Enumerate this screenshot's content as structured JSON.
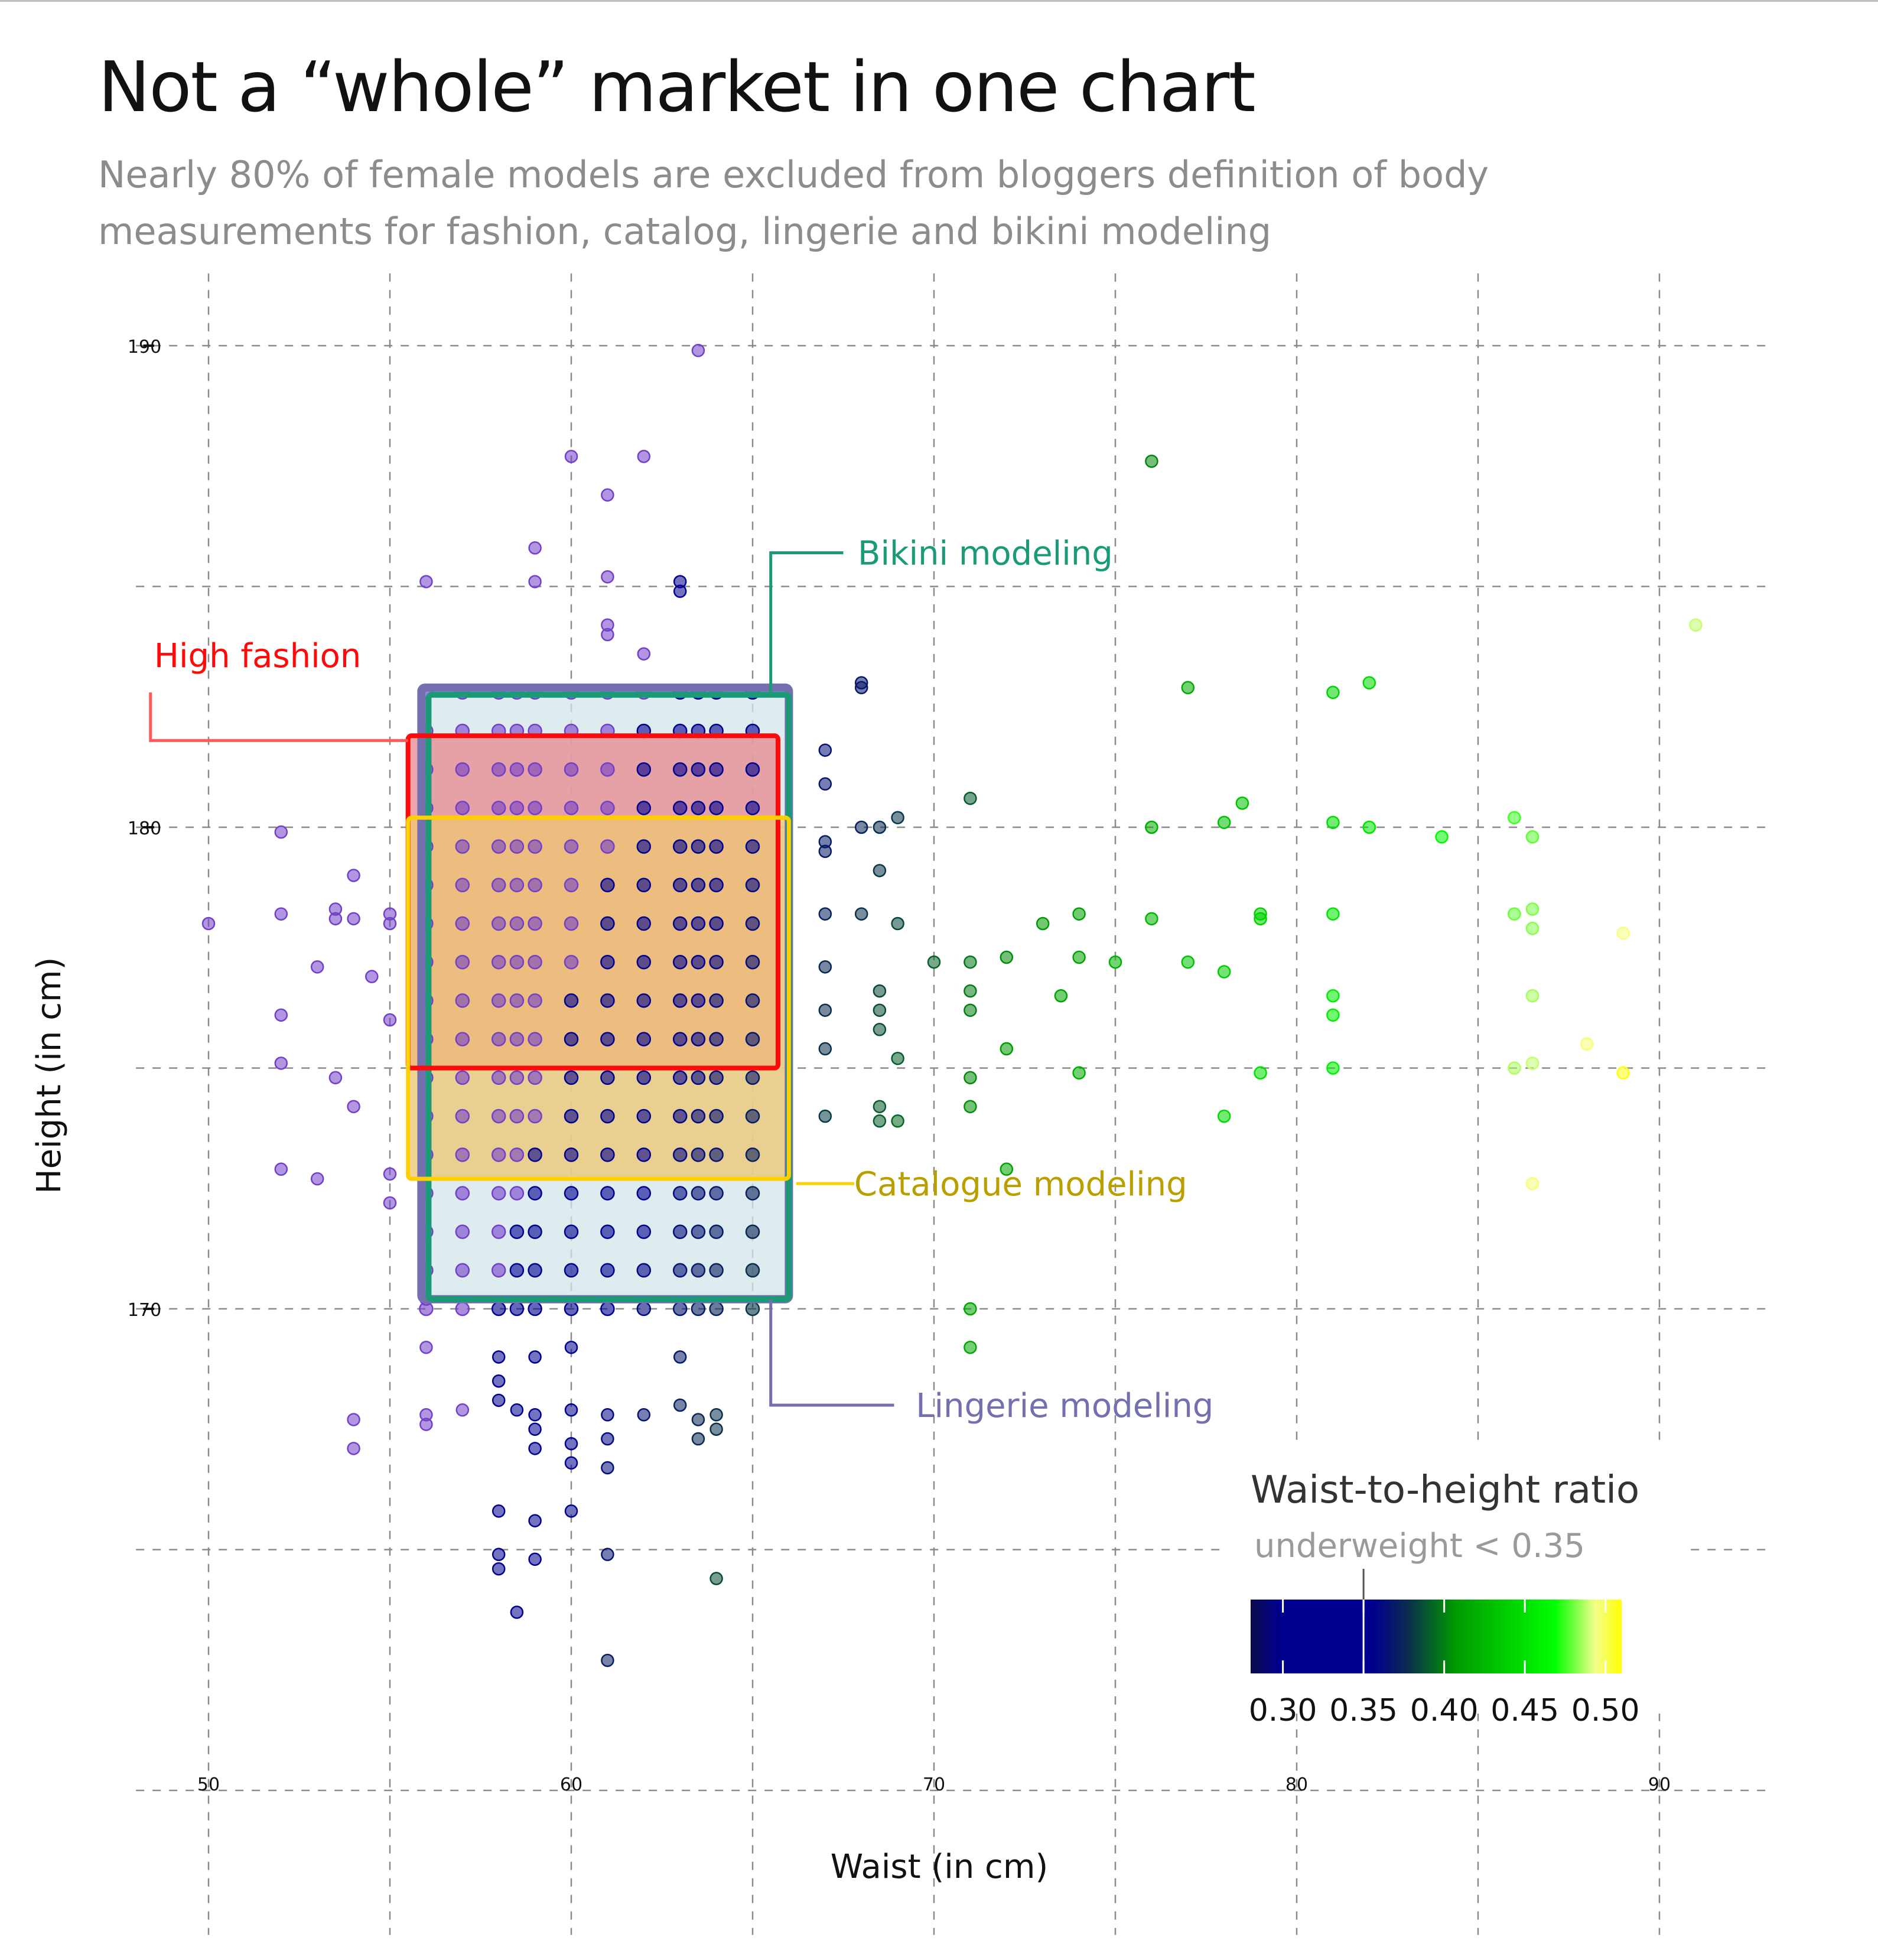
{
  "title": "Not a “whole” market in one chart",
  "subtitle": "Nearly 80% of female models are excluded from bloggers definition of body measurements for fashion, catalog, lingerie and bikini modeling",
  "chart_data": {
    "type": "scatter",
    "xlabel": "Waist (in cm)",
    "ylabel": "Height (in cm)",
    "xlim": [
      50,
      90
    ],
    "ylim": [
      160,
      190
    ],
    "x_ticks": [
      "50",
      "60",
      "70",
      "80",
      "90"
    ],
    "y_ticks": [
      "170",
      "180",
      "190"
    ],
    "grid": true,
    "color_by": "waist-to-height ratio",
    "regions": [
      {
        "label": "Bikini modeling",
        "color": "#1a9a77",
        "fill": "#d3e6ea",
        "waist": [
          56,
          66
        ],
        "height": [
          170.2,
          182.8
        ]
      },
      {
        "label": "Lingerie modeling",
        "color": "#7470b0",
        "fill": "none",
        "waist": [
          56,
          66
        ],
        "height": [
          170.2,
          182.8
        ]
      },
      {
        "label": "High fashion",
        "color": "#ff0a0a",
        "fill": "#e8888e",
        "waist": [
          55.5,
          65.7
        ],
        "height": [
          175,
          181.9
        ]
      },
      {
        "label": "Catalogue modeling",
        "color": "#ffd000",
        "fill": "#eec770",
        "waist": [
          55.5,
          66
        ],
        "height": [
          172.7,
          180.2
        ]
      }
    ],
    "legend": {
      "title": "Waist-to-height ratio",
      "note": "underweight < 0.35",
      "ticks": [
        "0.30",
        "0.35",
        "0.40",
        "0.45",
        "0.50"
      ],
      "range": [
        0.28,
        0.51
      ],
      "position": "bottom-right"
    },
    "points": [
      [
        63.5,
        189.9
      ],
      [
        60,
        187.7
      ],
      [
        62,
        187.7
      ],
      [
        61,
        186.9
      ],
      [
        59,
        185.8
      ],
      [
        56,
        185.1
      ],
      [
        59,
        185.1
      ],
      [
        61,
        185.2
      ],
      [
        63,
        185.1
      ],
      [
        63,
        184.9
      ],
      [
        61,
        184.2
      ],
      [
        61,
        184
      ],
      [
        62,
        183.6
      ],
      [
        76,
        187.6
      ],
      [
        77,
        182.9
      ],
      [
        81,
        182.8
      ],
      [
        82,
        183
      ],
      [
        91,
        184.2
      ],
      [
        68,
        183
      ],
      [
        68,
        182.9
      ],
      [
        67,
        181.6
      ],
      [
        67,
        180.9
      ],
      [
        71,
        180.6
      ],
      [
        78.5,
        180.5
      ],
      [
        69,
        180.2
      ],
      [
        68,
        180
      ],
      [
        68.5,
        180
      ],
      [
        76,
        180
      ],
      [
        78,
        180.1
      ],
      [
        81,
        180.1
      ],
      [
        82,
        180
      ],
      [
        84,
        179.8
      ],
      [
        86,
        180.2
      ],
      [
        86.5,
        179.8
      ],
      [
        67,
        179.7
      ],
      [
        68.5,
        179.1
      ],
      [
        67,
        179.5
      ],
      [
        67,
        178.2
      ],
      [
        68,
        178.2
      ],
      [
        69,
        178
      ],
      [
        71,
        177.2
      ],
      [
        73,
        178
      ],
      [
        74,
        178.2
      ],
      [
        76,
        178.1
      ],
      [
        77,
        177.2
      ],
      [
        79,
        178.1
      ],
      [
        79,
        178.2
      ],
      [
        81,
        178.2
      ],
      [
        86,
        178.2
      ],
      [
        86.5,
        178.3
      ],
      [
        86.5,
        177.9
      ],
      [
        89,
        177.8
      ],
      [
        70,
        177.2
      ],
      [
        72,
        177.3
      ],
      [
        74,
        177.3
      ],
      [
        75,
        177.2
      ],
      [
        78,
        177.0
      ],
      [
        67,
        177.1
      ],
      [
        68.5,
        176.6
      ],
      [
        71,
        176.6
      ],
      [
        73.5,
        176.5
      ],
      [
        81,
        176.5
      ],
      [
        86.5,
        176.5
      ],
      [
        67,
        176.2
      ],
      [
        68.5,
        176.2
      ],
      [
        71,
        176.2
      ],
      [
        81,
        176.1
      ],
      [
        72,
        175.4
      ],
      [
        67,
        175.4
      ],
      [
        68.5,
        175.8
      ],
      [
        69,
        175.2
      ],
      [
        81,
        175
      ],
      [
        86,
        175
      ],
      [
        86.5,
        175.1
      ],
      [
        88,
        175.5
      ],
      [
        89,
        174.9
      ],
      [
        71,
        174.8
      ],
      [
        74,
        174.9
      ],
      [
        79,
        174.9
      ],
      [
        67,
        174
      ],
      [
        68.5,
        174.2
      ],
      [
        68.5,
        173.9
      ],
      [
        69,
        173.9
      ],
      [
        71,
        174.2
      ],
      [
        78,
        174
      ],
      [
        72,
        172.9
      ],
      [
        86.5,
        172.6
      ],
      [
        71,
        170
      ],
      [
        71,
        169.2
      ],
      [
        52,
        179.9
      ],
      [
        54,
        179
      ],
      [
        50,
        178
      ],
      [
        52,
        178.2
      ],
      [
        53.5,
        178.1
      ],
      [
        53.5,
        178.3
      ],
      [
        54,
        178.1
      ],
      [
        55,
        178
      ],
      [
        55,
        178.2
      ],
      [
        53,
        177.1
      ],
      [
        54.5,
        176.9
      ],
      [
        52,
        176.1
      ],
      [
        55,
        176
      ],
      [
        52,
        175.1
      ],
      [
        53.5,
        174.8
      ],
      [
        54,
        174.2
      ],
      [
        52,
        172.9
      ],
      [
        53,
        172.7
      ],
      [
        55,
        172.8
      ],
      [
        55,
        172.2
      ],
      [
        56,
        170.2
      ],
      [
        56,
        169.2
      ],
      [
        58,
        169
      ],
      [
        58,
        168.5
      ],
      [
        59,
        169
      ],
      [
        60,
        169.2
      ],
      [
        63,
        169
      ],
      [
        56,
        167.8
      ],
      [
        56,
        167.6
      ],
      [
        57,
        167.9
      ],
      [
        58,
        168.1
      ],
      [
        58.5,
        167.9
      ],
      [
        59,
        167.8
      ],
      [
        60,
        167.9
      ],
      [
        61,
        167.8
      ],
      [
        62,
        167.8
      ],
      [
        63,
        168
      ],
      [
        64,
        167.8
      ],
      [
        63.5,
        167.7
      ],
      [
        64,
        167.5
      ],
      [
        54,
        167.7
      ],
      [
        54,
        167.1
      ],
      [
        59,
        167.5
      ],
      [
        60,
        167.2
      ],
      [
        61,
        167.3
      ],
      [
        60,
        166.8
      ],
      [
        61,
        166.7
      ],
      [
        63.5,
        167.3
      ],
      [
        59,
        167.1
      ],
      [
        58,
        165.8
      ],
      [
        59,
        165.6
      ],
      [
        60,
        165.8
      ],
      [
        58,
        164.9
      ],
      [
        58,
        164.6
      ],
      [
        59,
        164.8
      ],
      [
        61,
        164.9
      ],
      [
        64,
        164.4
      ],
      [
        58.5,
        163.7
      ],
      [
        61,
        162.7
      ]
    ]
  }
}
